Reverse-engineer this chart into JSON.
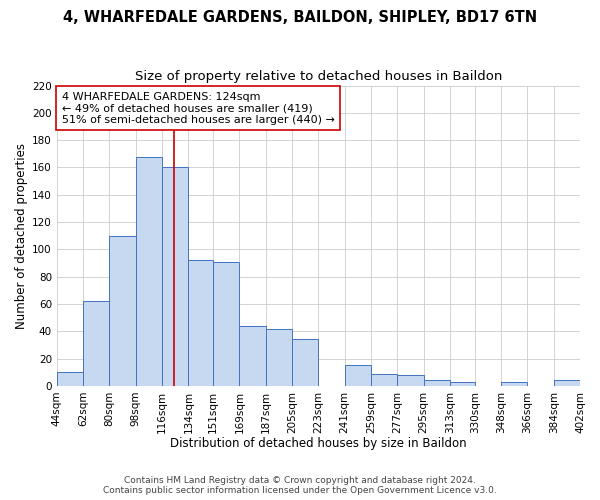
{
  "title": "4, WHARFEDALE GARDENS, BAILDON, SHIPLEY, BD17 6TN",
  "subtitle": "Size of property relative to detached houses in Baildon",
  "xlabel": "Distribution of detached houses by size in Baildon",
  "ylabel": "Number of detached properties",
  "bar_labels": [
    "44sqm",
    "62sqm",
    "80sqm",
    "98sqm",
    "116sqm",
    "134sqm",
    "151sqm",
    "169sqm",
    "187sqm",
    "205sqm",
    "223sqm",
    "241sqm",
    "259sqm",
    "277sqm",
    "295sqm",
    "313sqm",
    "330sqm",
    "348sqm",
    "366sqm",
    "384sqm",
    "402sqm"
  ],
  "bar_values": [
    10,
    62,
    110,
    168,
    160,
    92,
    91,
    44,
    42,
    34,
    0,
    15,
    9,
    8,
    4,
    3,
    0,
    3,
    0,
    4,
    4
  ],
  "bar_edges": [
    44,
    62,
    80,
    98,
    116,
    134,
    151,
    169,
    187,
    205,
    223,
    241,
    259,
    277,
    295,
    313,
    330,
    348,
    366,
    384,
    402
  ],
  "bar_color": "#c6d9f0",
  "bar_edgecolor": "#4472c4",
  "property_value": 124,
  "property_label": "4 WHARFEDALE GARDENS: 124sqm",
  "annotation_line1": "← 49% of detached houses are smaller (419)",
  "annotation_line2": "51% of semi-detached houses are larger (440) →",
  "vline_color": "#cc0000",
  "ylim": [
    0,
    220
  ],
  "yticks": [
    0,
    20,
    40,
    60,
    80,
    100,
    120,
    140,
    160,
    180,
    200,
    220
  ],
  "grid_color": "#cccccc",
  "bg_color": "#ffffff",
  "footer1": "Contains HM Land Registry data © Crown copyright and database right 2024.",
  "footer2": "Contains public sector information licensed under the Open Government Licence v3.0.",
  "annotation_box_color": "#ffffff",
  "annotation_box_edgecolor": "#cc0000",
  "title_fontsize": 10.5,
  "subtitle_fontsize": 9.5,
  "axis_label_fontsize": 8.5,
  "tick_fontsize": 7.5,
  "annotation_fontsize": 8,
  "footer_fontsize": 6.5
}
